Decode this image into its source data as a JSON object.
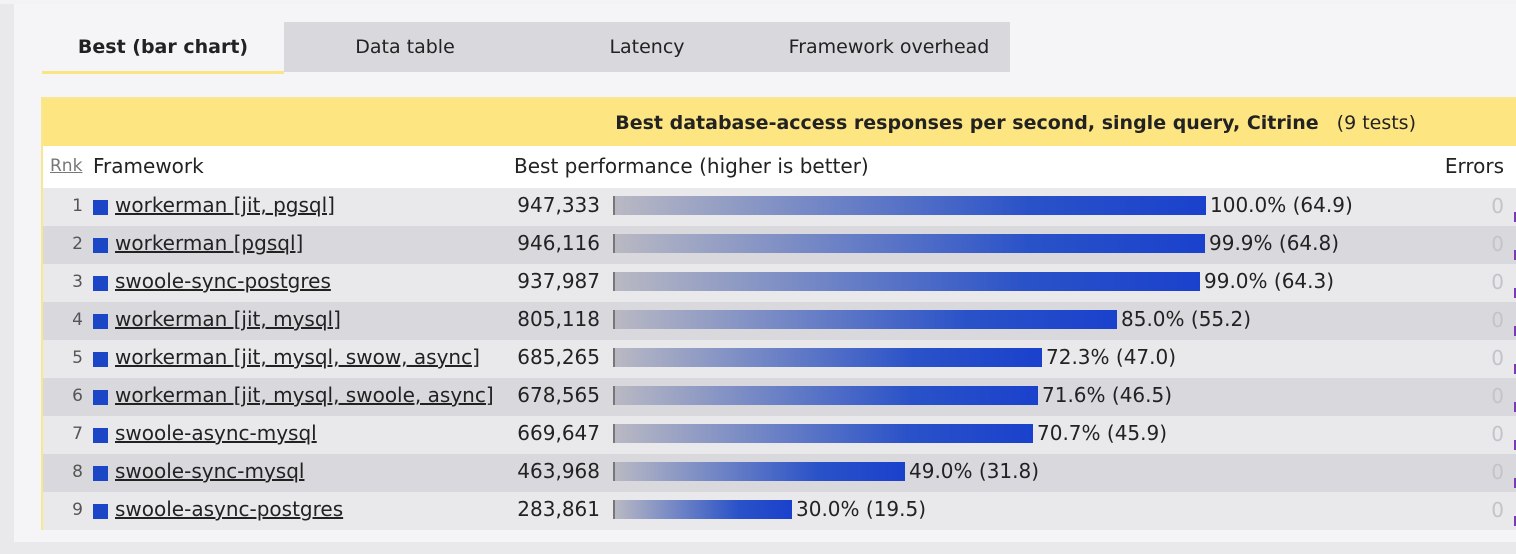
{
  "tabs": [
    {
      "label": "Best (bar chart)",
      "active": true
    },
    {
      "label": "Data table",
      "active": false
    },
    {
      "label": "Latency",
      "active": false
    },
    {
      "label": "Framework overhead",
      "active": false
    }
  ],
  "panel": {
    "title": "Best database-access responses per second, single query, Citrine",
    "count": "(9 tests)"
  },
  "columns": {
    "rank": "Rnk",
    "framework": "Framework",
    "performance": "Best performance (higher is better)",
    "errors": "Errors"
  },
  "colors": {
    "bar": "#1b47c7",
    "header": "#fde681"
  },
  "chart_data": {
    "type": "bar",
    "categories": [
      "workerman [jit, pgsql]",
      "workerman [pgsql]",
      "swoole-sync-postgres",
      "workerman [jit, mysql]",
      "workerman [jit, mysql, swow, async]",
      "workerman [jit, mysql, swoole, async]",
      "swoole-async-mysql",
      "swoole-sync-mysql",
      "swoole-async-postgres"
    ],
    "values": [
      947333,
      946116,
      937987,
      805118,
      685265,
      678565,
      669647,
      463968,
      283861
    ],
    "max": 947333
  },
  "rows": [
    {
      "rank": "1",
      "name": "workerman [jit, pgsql]",
      "value": "947,333",
      "pct": 100.0,
      "label": "100.0% (64.9)",
      "errors": "0"
    },
    {
      "rank": "2",
      "name": "workerman [pgsql]",
      "value": "946,116",
      "pct": 99.9,
      "label": "99.9% (64.8)",
      "errors": "0"
    },
    {
      "rank": "3",
      "name": "swoole-sync-postgres",
      "value": "937,987",
      "pct": 99.0,
      "label": "99.0% (64.3)",
      "errors": "0"
    },
    {
      "rank": "4",
      "name": "workerman [jit, mysql]",
      "value": "805,118",
      "pct": 85.0,
      "label": "85.0% (55.2)",
      "errors": "0"
    },
    {
      "rank": "5",
      "name": "workerman [jit, mysql, swow, async]",
      "value": "685,265",
      "pct": 72.3,
      "label": "72.3% (47.0)",
      "errors": "0"
    },
    {
      "rank": "6",
      "name": "workerman [jit, mysql, swoole, async]",
      "value": "678,565",
      "pct": 71.6,
      "label": "71.6% (46.5)",
      "errors": "0"
    },
    {
      "rank": "7",
      "name": "swoole-async-mysql",
      "value": "669,647",
      "pct": 70.7,
      "label": "70.7% (45.9)",
      "errors": "0"
    },
    {
      "rank": "8",
      "name": "swoole-sync-mysql",
      "value": "463,968",
      "pct": 49.0,
      "label": "49.0% (31.8)",
      "errors": "0"
    },
    {
      "rank": "9",
      "name": "swoole-async-postgres",
      "value": "283,861",
      "pct": 30.0,
      "label": "30.0% (19.5)",
      "errors": "0"
    }
  ]
}
